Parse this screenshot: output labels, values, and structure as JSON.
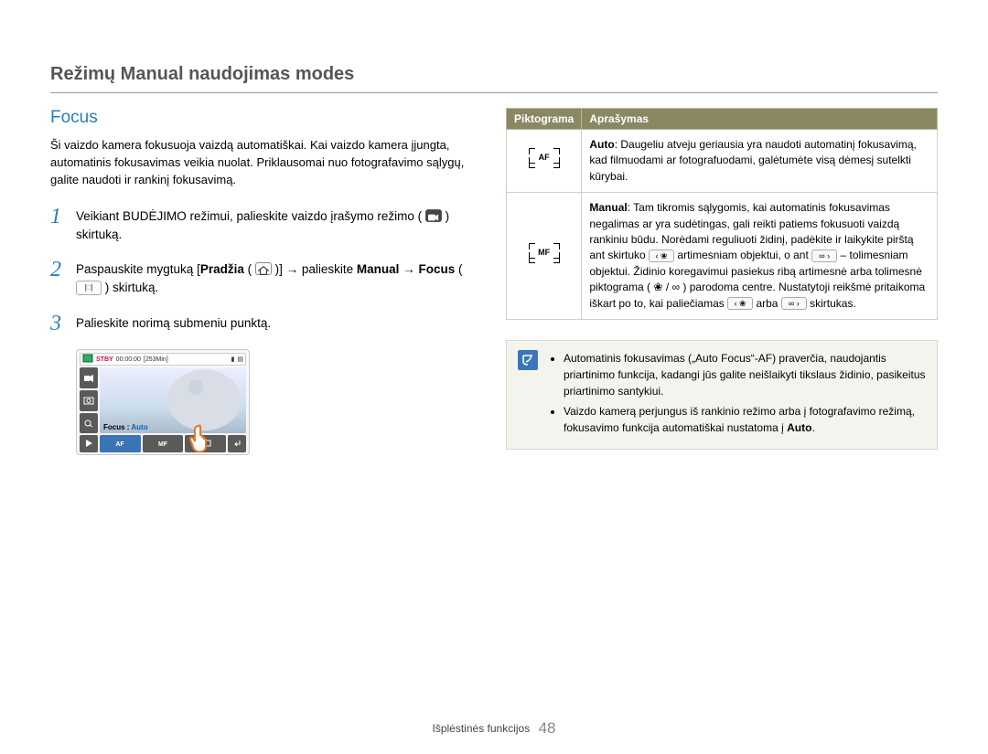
{
  "page": {
    "title": "Režimų Manual naudojimas modes",
    "section_heading": "Focus",
    "intro": "Ši vaizdo kamera fokusuoja vaizdą automatiškai. Kai vaizdo kamera įjungta, automatinis fokusavimas veikia nuolat. Priklausomai nuo fotografavimo sąlygų, galite naudoti ir rankinį fokusavimą.",
    "steps": [
      {
        "num": "1",
        "before": "Veikiant BUDĖJIMO režimui, palieskite vaizdo įrašymo režimo (",
        "after": ") skirtuką."
      },
      {
        "num": "2",
        "t1": "Paspauskite mygtuką [",
        "b1": "Pradžia",
        "t2": " (",
        "t3": ")] → palieskite ",
        "b2": "Manual",
        "t4": " → ",
        "b3": "Focus",
        "t5": " (",
        "t6": ") skirtuką."
      },
      {
        "num": "3",
        "text": "Palieskite norimą submeniu punktą."
      }
    ],
    "thumb": {
      "stby": "STBY",
      "time": "00:00:00",
      "remain": "[253Min]",
      "focus_label": "Focus :",
      "focus_value": "Auto"
    }
  },
  "table": {
    "header_icon": "Piktograma",
    "header_desc": "Aprašymas",
    "rows": [
      {
        "icon_label": "AF",
        "desc_bold": "Auto",
        "desc_text": ": Daugeliu atveju geriausia yra naudoti automatinį fokusavimą, kad filmuodami ar fotografuodami, galėtumėte visą dėmesį sutelkti kūrybai."
      },
      {
        "icon_label": "MF",
        "desc_bold": "Manual",
        "d1": ": Tam tikromis sąlygomis, kai automatinis fokusavimas negalimas ar yra sudėtingas, gali reikti patiems fokusuoti vaizdą rankiniu būdu. Norėdami reguliuoti židinį, padėkite ir laikykite pirštą ant skirtuko ",
        "d2": " artimesniam objektui, o ant ",
        "d3": " – tolimesniam objektui. Židinio koregavimui pasiekus ribą artimesnė arba tolimesnė piktograma (",
        "d4": " / ",
        "d5": ") parodoma centre. Nustatytoji reikšmė pritaikoma iškart po to, kai paliečiamas ",
        "d6": " arba ",
        "d7": " skirtukas.",
        "btn_near": "‹ ❀",
        "btn_far": "∞ ›",
        "sym_near": "❀",
        "sym_far": "∞"
      }
    ]
  },
  "note": {
    "items": [
      "Automatinis fokusavimas („Auto Focus“-AF) praverčia, naudojantis priartinimo funkcija, kadangi jūs galite neišlaikyti tikslaus židinio, pasikeitus priartinimo santykiui.",
      "Vaizdo kamerą perjungus iš rankinio režimo arba į fotografavimo režimą, fokusavimo funkcija automatiškai nustatoma į Auto."
    ],
    "bold_word": "Auto"
  },
  "footer": {
    "label": "Išplėstinės funkcijos",
    "page_no": "48"
  },
  "colors": {
    "accent_blue": "#2a7fb8",
    "header_olive": "#8a8863",
    "note_bg": "#f4f4ee"
  }
}
